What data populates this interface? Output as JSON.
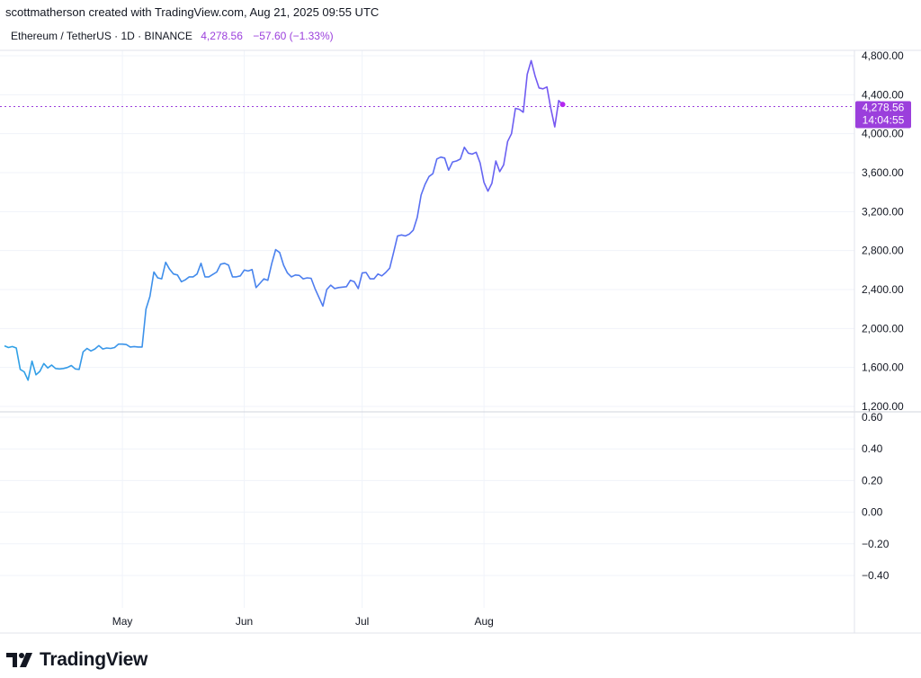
{
  "header": {
    "credit": "scottmatherson created with TradingView.com, Aug 21, 2025 09:55 UTC",
    "symbol": "Ethereum / TetherUS · 1D · BINANCE",
    "last_price": "4,278.56",
    "change": "−57.60 (−1.33%)"
  },
  "price_label": {
    "price": "4,278.56",
    "countdown": "14:04:55"
  },
  "brand": {
    "name": "TradingView"
  },
  "colors": {
    "line_start": "#2ea3e6",
    "line_mid": "#5b6df2",
    "line_end": "#b427f0",
    "accent": "#9b3fdc",
    "grid": "#f0f3fa"
  },
  "chart_data": {
    "type": "line",
    "title": "Ethereum / TetherUS · 1D · BINANCE",
    "price_axis": {
      "ticks": [
        "4,800.00",
        "4,400.00",
        "4,000.00",
        "3,600.00",
        "3,200.00",
        "2,800.00",
        "2,400.00",
        "2,000.00",
        "1,600.00",
        "1,200.00"
      ],
      "range": [
        1150,
        4950
      ]
    },
    "indicator_axis": {
      "ticks": [
        "0.60",
        "0.40",
        "0.20",
        "0.00",
        "−0.20",
        "−0.40"
      ],
      "range": [
        -0.72,
        0.6
      ]
    },
    "x_labels": [
      "May",
      "Jun",
      "Jul",
      "Aug"
    ],
    "x_range": [
      "2025-04-01",
      "2025-08-21"
    ],
    "grid": true,
    "current_price": 4278.56,
    "series": [
      {
        "x": [
          "2025-04-01",
          "2025-04-02",
          "2025-04-03",
          "2025-04-04",
          "2025-04-05",
          "2025-04-06",
          "2025-04-07",
          "2025-04-08",
          "2025-04-09",
          "2025-04-10",
          "2025-04-11",
          "2025-04-12",
          "2025-04-13",
          "2025-04-14",
          "2025-04-15",
          "2025-04-16",
          "2025-04-17",
          "2025-04-18",
          "2025-04-19",
          "2025-04-20",
          "2025-04-21",
          "2025-04-22",
          "2025-04-23",
          "2025-04-24",
          "2025-04-25",
          "2025-04-26",
          "2025-04-27",
          "2025-04-28",
          "2025-04-29",
          "2025-04-30",
          "2025-05-01",
          "2025-05-02",
          "2025-05-03",
          "2025-05-04",
          "2025-05-05",
          "2025-05-06",
          "2025-05-07",
          "2025-05-08",
          "2025-05-09",
          "2025-05-10",
          "2025-05-11",
          "2025-05-12",
          "2025-05-13",
          "2025-05-14",
          "2025-05-15",
          "2025-05-16",
          "2025-05-17",
          "2025-05-18",
          "2025-05-19",
          "2025-05-20",
          "2025-05-21",
          "2025-05-22",
          "2025-05-23",
          "2025-05-24",
          "2025-05-25",
          "2025-05-26",
          "2025-05-27",
          "2025-05-28",
          "2025-05-29",
          "2025-05-30",
          "2025-05-31",
          "2025-06-01",
          "2025-06-02",
          "2025-06-03",
          "2025-06-04",
          "2025-06-05",
          "2025-06-06",
          "2025-06-07",
          "2025-06-08",
          "2025-06-09",
          "2025-06-10",
          "2025-06-11",
          "2025-06-12",
          "2025-06-13",
          "2025-06-14",
          "2025-06-15",
          "2025-06-16",
          "2025-06-17",
          "2025-06-18",
          "2025-06-19",
          "2025-06-20",
          "2025-06-21",
          "2025-06-22",
          "2025-06-23",
          "2025-06-24",
          "2025-06-25",
          "2025-06-26",
          "2025-06-27",
          "2025-06-28",
          "2025-06-29",
          "2025-06-30",
          "2025-07-01",
          "2025-07-02",
          "2025-07-03",
          "2025-07-04",
          "2025-07-05",
          "2025-07-06",
          "2025-07-07",
          "2025-07-08",
          "2025-07-09",
          "2025-07-10",
          "2025-07-11",
          "2025-07-12",
          "2025-07-13",
          "2025-07-14",
          "2025-07-15",
          "2025-07-16",
          "2025-07-17",
          "2025-07-18",
          "2025-07-19",
          "2025-07-20",
          "2025-07-21",
          "2025-07-22",
          "2025-07-23",
          "2025-07-24",
          "2025-07-25",
          "2025-07-26",
          "2025-07-27",
          "2025-07-28",
          "2025-07-29",
          "2025-07-30",
          "2025-07-31",
          "2025-08-01",
          "2025-08-02",
          "2025-08-03",
          "2025-08-04",
          "2025-08-05",
          "2025-08-06",
          "2025-08-07",
          "2025-08-08",
          "2025-08-09",
          "2025-08-10",
          "2025-08-11",
          "2025-08-12",
          "2025-08-13",
          "2025-08-14",
          "2025-08-15",
          "2025-08-16",
          "2025-08-17",
          "2025-08-18",
          "2025-08-19",
          "2025-08-20",
          "2025-08-21"
        ],
        "values": [
          1822,
          1805,
          1815,
          1800,
          1580,
          1555,
          1470,
          1665,
          1525,
          1560,
          1640,
          1595,
          1625,
          1590,
          1585,
          1590,
          1600,
          1620,
          1585,
          1580,
          1760,
          1795,
          1770,
          1790,
          1825,
          1790,
          1800,
          1795,
          1805,
          1840,
          1840,
          1835,
          1810,
          1815,
          1810,
          1810,
          2200,
          2330,
          2580,
          2520,
          2510,
          2680,
          2610,
          2560,
          2550,
          2480,
          2500,
          2530,
          2530,
          2560,
          2670,
          2530,
          2530,
          2555,
          2580,
          2660,
          2670,
          2650,
          2530,
          2530,
          2540,
          2600,
          2590,
          2605,
          2420,
          2465,
          2510,
          2495,
          2670,
          2810,
          2780,
          2650,
          2570,
          2530,
          2550,
          2545,
          2510,
          2520,
          2515,
          2410,
          2320,
          2230,
          2400,
          2445,
          2410,
          2420,
          2425,
          2430,
          2495,
          2480,
          2410,
          2570,
          2575,
          2510,
          2510,
          2560,
          2540,
          2575,
          2620,
          2780,
          2950,
          2960,
          2950,
          2970,
          3010,
          3140,
          3370,
          3480,
          3560,
          3590,
          3740,
          3760,
          3750,
          3625,
          3710,
          3720,
          3740,
          3860,
          3800,
          3790,
          3810,
          3700,
          3500,
          3410,
          3490,
          3720,
          3610,
          3680,
          3920,
          4000,
          4260,
          4250,
          4220,
          4610,
          4750,
          4590,
          4470,
          4460,
          4480,
          4260,
          4070,
          4340,
          4300
        ]
      }
    ]
  }
}
